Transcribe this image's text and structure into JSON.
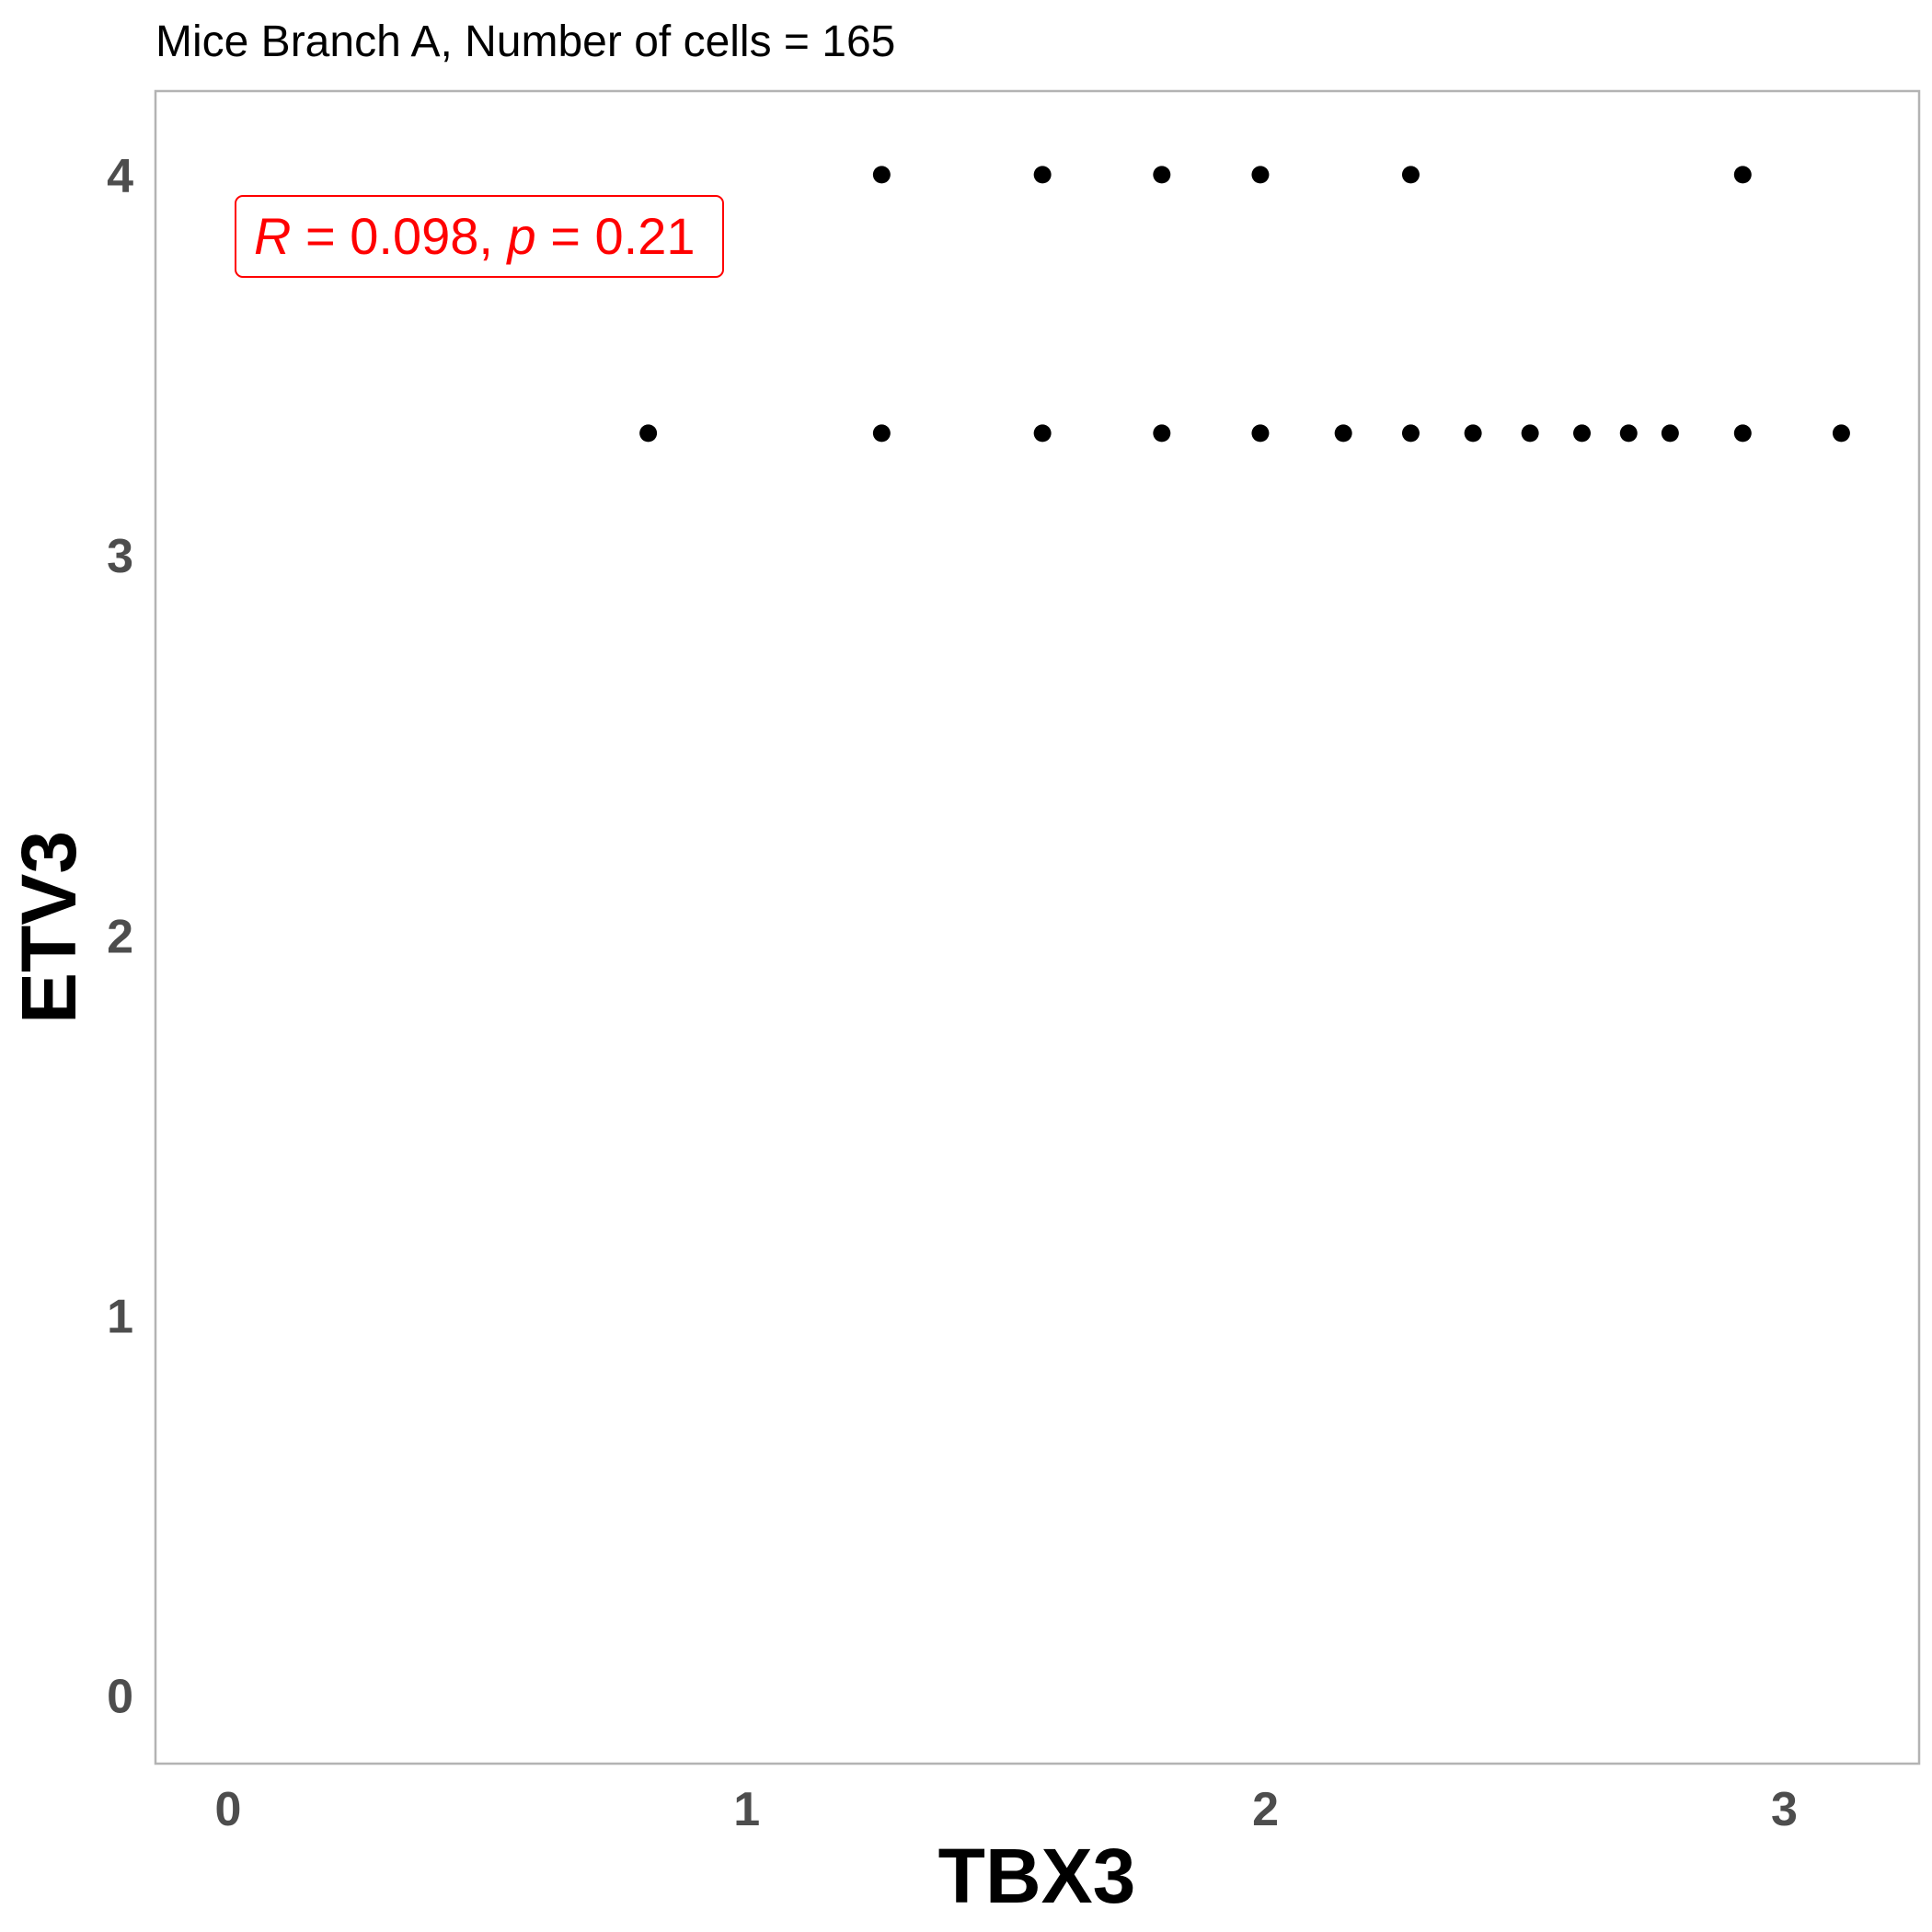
{
  "chart_data": {
    "type": "scatter",
    "title": "Mice Branch A, Number of cells = 165",
    "xlabel": "TBX3",
    "ylabel": "ETV3",
    "xlim": [
      -0.14,
      3.26
    ],
    "ylim": [
      -0.18,
      4.22
    ],
    "x_ticks": [
      0,
      1,
      2,
      3
    ],
    "y_ticks": [
      0,
      1,
      2,
      3,
      4
    ],
    "x_tick_labels": [
      "0",
      "1",
      "2",
      "3"
    ],
    "y_tick_labels": [
      "0",
      "1",
      "2",
      "3",
      "4"
    ],
    "grid": false,
    "legend": "none",
    "point_color": "#000000",
    "panel_border_color": "#b3b3b3",
    "annotation": {
      "r_symbol": "R",
      "r_value": "0.098",
      "p_symbol": "p",
      "p_value": "0.21",
      "color": "#ff0000"
    },
    "points": [
      {
        "x": 1.26,
        "y": 4.0
      },
      {
        "x": 1.57,
        "y": 4.0
      },
      {
        "x": 1.8,
        "y": 4.0
      },
      {
        "x": 1.99,
        "y": 4.0
      },
      {
        "x": 2.28,
        "y": 4.0
      },
      {
        "x": 2.92,
        "y": 4.0
      },
      {
        "x": 0.81,
        "y": 3.32
      },
      {
        "x": 1.26,
        "y": 3.32
      },
      {
        "x": 1.57,
        "y": 3.32
      },
      {
        "x": 1.8,
        "y": 3.32
      },
      {
        "x": 1.99,
        "y": 3.32
      },
      {
        "x": 2.15,
        "y": 3.32
      },
      {
        "x": 2.28,
        "y": 3.32
      },
      {
        "x": 2.4,
        "y": 3.32
      },
      {
        "x": 2.51,
        "y": 3.32
      },
      {
        "x": 2.61,
        "y": 3.32
      },
      {
        "x": 2.7,
        "y": 3.32
      },
      {
        "x": 2.78,
        "y": 3.32
      },
      {
        "x": 2.92,
        "y": 3.32
      },
      {
        "x": 3.11,
        "y": 3.32
      }
    ]
  }
}
